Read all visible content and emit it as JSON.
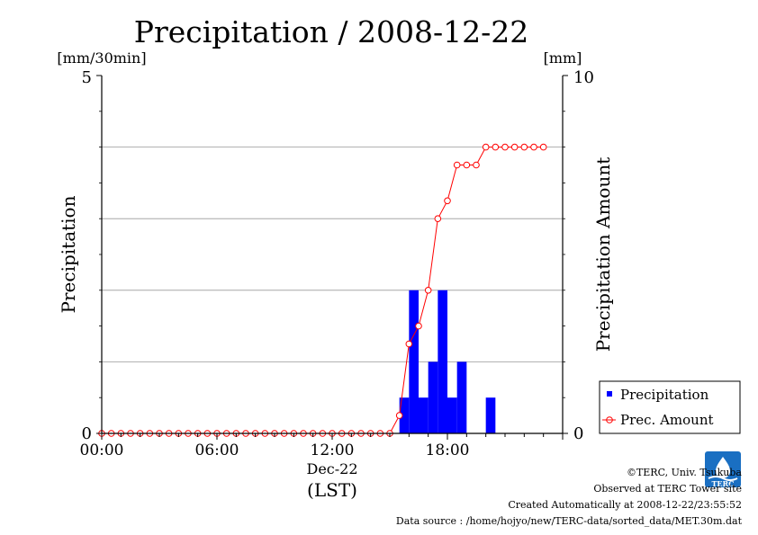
{
  "chart_data": {
    "type": "bar",
    "title": "Precipitation / 2008-12-22",
    "left_unit": "[mm/30min]",
    "right_unit": "[mm]",
    "ylabel": "Precipitation",
    "ylabel_right": "Precipitation Amount",
    "xlabel": "(LST)",
    "x_date_label": "Dec-22",
    "ylim": [
      0,
      5
    ],
    "ylim_right": [
      0,
      10
    ],
    "left_ticks": [
      "0",
      "5"
    ],
    "right_ticks": [
      "0",
      "10"
    ],
    "x_ticks": [
      "00:00",
      "06:00",
      "12:00",
      "18:00"
    ],
    "x_tick_hours": [
      0,
      6,
      12,
      18
    ],
    "grid": true,
    "legend_position": "bottom-right",
    "x_hours": [
      0,
      0.5,
      1,
      1.5,
      2,
      2.5,
      3,
      3.5,
      4,
      4.5,
      5,
      5.5,
      6,
      6.5,
      7,
      7.5,
      8,
      8.5,
      9,
      9.5,
      10,
      10.5,
      11,
      11.5,
      12,
      12.5,
      13,
      13.5,
      14,
      14.5,
      15,
      15.5,
      16,
      16.5,
      17,
      17.5,
      18,
      18.5,
      19,
      19.5,
      20,
      20.5,
      21,
      21.5,
      22,
      22.5,
      23
    ],
    "series": [
      {
        "name": "Precipitation",
        "type": "bar",
        "color": "#0000ff",
        "axis": "left",
        "values": [
          0,
          0,
          0,
          0,
          0,
          0,
          0,
          0,
          0,
          0,
          0,
          0,
          0,
          0,
          0,
          0,
          0,
          0,
          0,
          0,
          0,
          0,
          0,
          0,
          0,
          0,
          0,
          0,
          0,
          0,
          0,
          0.5,
          2,
          0.5,
          1,
          2,
          0.5,
          1,
          0,
          0,
          0.5,
          0,
          0,
          0,
          0,
          0,
          0
        ]
      },
      {
        "name": "Prec. Amount",
        "type": "line",
        "color": "#ff0000",
        "axis": "right",
        "values": [
          0,
          0,
          0,
          0,
          0,
          0,
          0,
          0,
          0,
          0,
          0,
          0,
          0,
          0,
          0,
          0,
          0,
          0,
          0,
          0,
          0,
          0,
          0,
          0,
          0,
          0,
          0,
          0,
          0,
          0,
          0,
          0.5,
          2.5,
          3,
          4,
          6,
          6.5,
          7.5,
          7.5,
          7.5,
          8,
          8,
          8,
          8,
          8,
          8,
          8
        ]
      }
    ]
  },
  "footer": {
    "copyright": "©TERC, Univ. Tsukuba",
    "observed": "Observed at TERC Tower site",
    "created": "Created Automatically at 2008-12-22/23:55:52",
    "source": "Data source : /home/hojyo/new/TERC-data/sorted_data/MET.30m.dat",
    "logo_text": "TERC"
  },
  "colors": {
    "bar": "#0000ff",
    "line": "#ff0000",
    "grid": "#999999",
    "axis": "#000000"
  }
}
